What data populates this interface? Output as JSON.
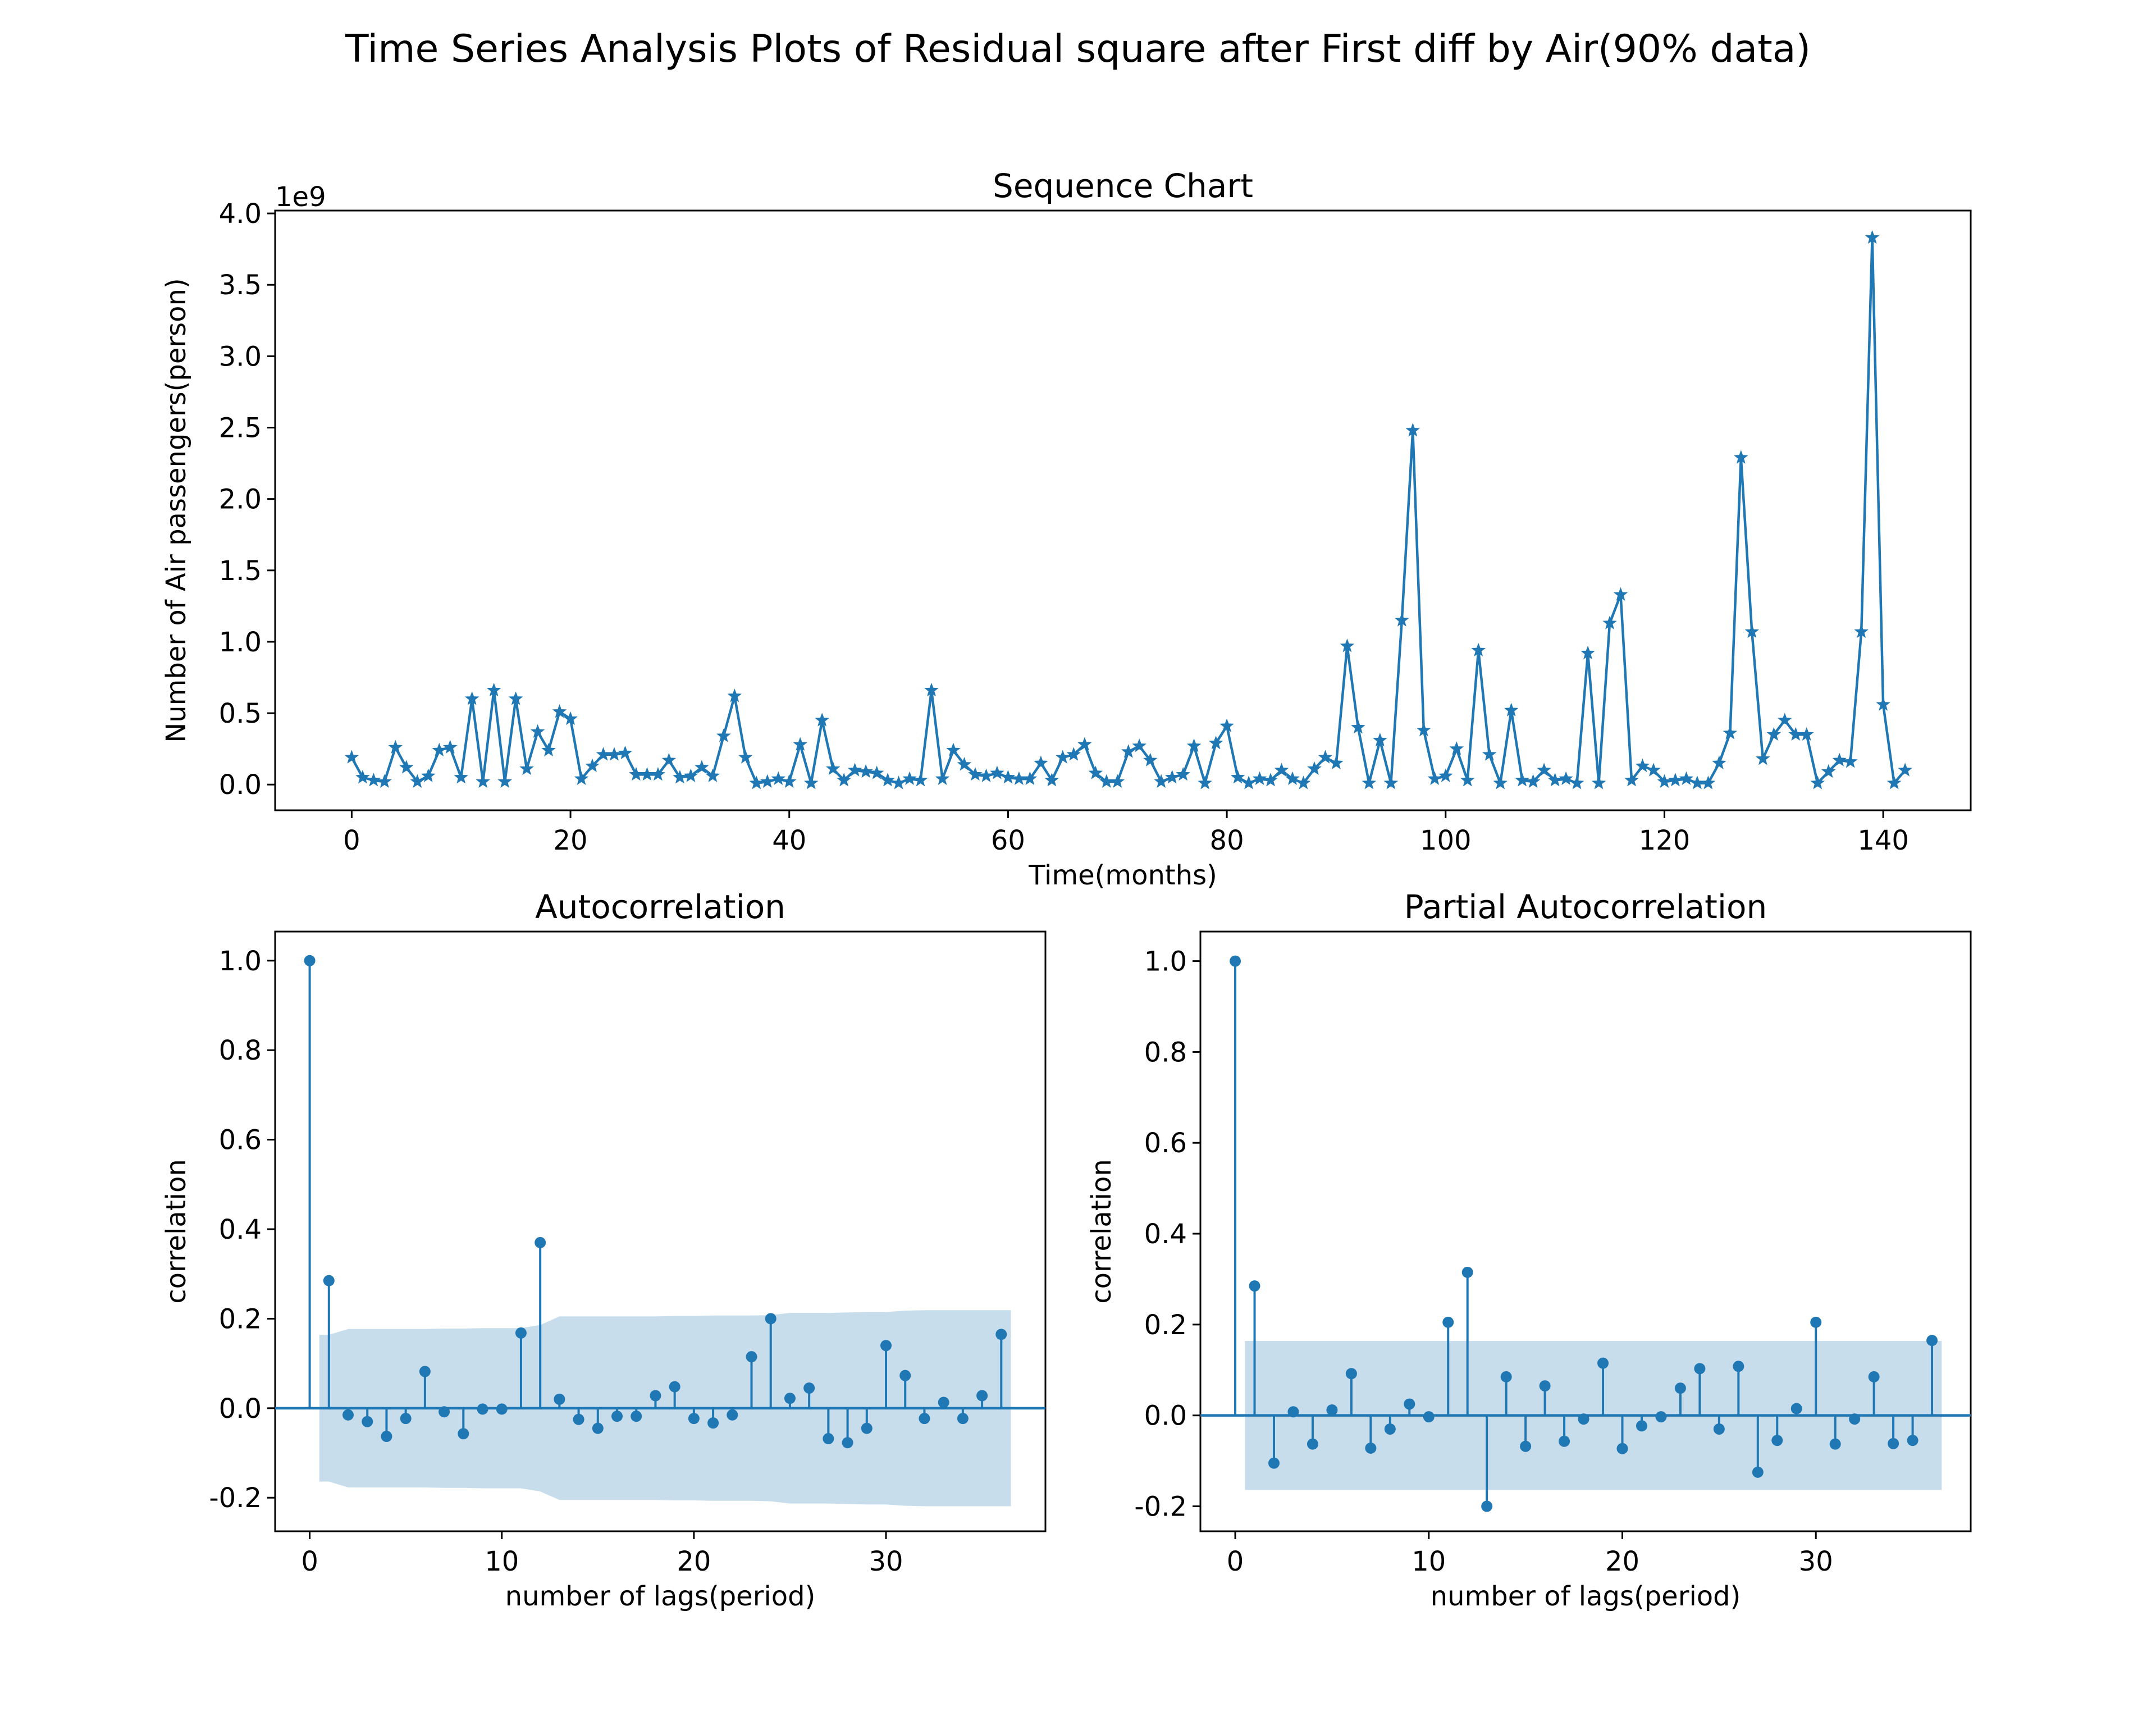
{
  "figure": {
    "title": "Time Series Analysis Plots of Residual square after First diff by Air(90% data)"
  },
  "colors": {
    "series": "#1f77b4",
    "band": "#1f77b4",
    "band_opacity": 0.25,
    "axis": "#000000"
  },
  "chart_data": [
    {
      "id": "sequence",
      "type": "line",
      "title": "Sequence Chart",
      "xlabel": "Time(months)",
      "ylabel": "Number of Air passengers(person)",
      "yoffset_label": "1e9",
      "marker": "star",
      "xlim": [
        -7,
        148
      ],
      "ylim": [
        -0.18,
        4.02
      ],
      "xticks": [
        0,
        20,
        40,
        60,
        80,
        100,
        120,
        140
      ],
      "yticks": [
        0.0,
        0.5,
        1.0,
        1.5,
        2.0,
        2.5,
        3.0,
        3.5,
        4.0
      ],
      "ytick_labels": [
        "0.0",
        "0.5",
        "1.0",
        "1.5",
        "2.0",
        "2.5",
        "3.0",
        "3.5",
        "4.0"
      ],
      "y_scale_note": "values in units of 1e9",
      "values": [
        0.19,
        0.05,
        0.03,
        0.02,
        0.26,
        0.12,
        0.02,
        0.06,
        0.24,
        0.26,
        0.05,
        0.6,
        0.02,
        0.66,
        0.02,
        0.6,
        0.11,
        0.37,
        0.24,
        0.51,
        0.46,
        0.04,
        0.13,
        0.21,
        0.21,
        0.22,
        0.07,
        0.07,
        0.07,
        0.17,
        0.05,
        0.06,
        0.12,
        0.06,
        0.34,
        0.62,
        0.19,
        0.01,
        0.02,
        0.04,
        0.02,
        0.28,
        0.01,
        0.45,
        0.11,
        0.03,
        0.1,
        0.09,
        0.08,
        0.03,
        0.01,
        0.04,
        0.03,
        0.66,
        0.04,
        0.24,
        0.14,
        0.07,
        0.06,
        0.08,
        0.05,
        0.04,
        0.04,
        0.15,
        0.03,
        0.19,
        0.21,
        0.28,
        0.08,
        0.02,
        0.02,
        0.23,
        0.27,
        0.17,
        0.02,
        0.05,
        0.07,
        0.27,
        0.01,
        0.29,
        0.41,
        0.05,
        0.01,
        0.04,
        0.03,
        0.1,
        0.04,
        0.01,
        0.11,
        0.19,
        0.15,
        0.97,
        0.4,
        0.01,
        0.31,
        0.01,
        1.15,
        2.48,
        0.38,
        0.04,
        0.06,
        0.25,
        0.03,
        0.94,
        0.21,
        0.01,
        0.52,
        0.03,
        0.02,
        0.1,
        0.03,
        0.04,
        0.01,
        0.92,
        0.01,
        1.13,
        1.33,
        0.03,
        0.13,
        0.1,
        0.02,
        0.03,
        0.04,
        0.01,
        0.01,
        0.15,
        0.36,
        2.29,
        1.07,
        0.18,
        0.35,
        0.45,
        0.35,
        0.35,
        0.01,
        0.09,
        0.17,
        0.16,
        1.07,
        3.83,
        0.56,
        0.01,
        0.1
      ]
    },
    {
      "id": "acf",
      "type": "stem",
      "title": "Autocorrelation",
      "xlabel": "number of lags(period)",
      "ylabel": "correlation",
      "xlim": [
        -1.8,
        38.3
      ],
      "ylim": [
        -0.275,
        1.065
      ],
      "xticks": [
        0,
        10,
        20,
        30
      ],
      "yticks": [
        -0.2,
        0.0,
        0.2,
        0.4,
        0.6,
        0.8,
        1.0
      ],
      "ytick_labels": [
        "-0.2",
        "0.0",
        "0.2",
        "0.4",
        "0.6",
        "0.8",
        "1.0"
      ],
      "lags": [
        0,
        1,
        2,
        3,
        4,
        5,
        6,
        7,
        8,
        9,
        10,
        11,
        12,
        13,
        14,
        15,
        16,
        17,
        18,
        19,
        20,
        21,
        22,
        23,
        24,
        25,
        26,
        27,
        28,
        29,
        30,
        31,
        32,
        33,
        34,
        35,
        36
      ],
      "values": [
        1.0,
        0.285,
        -0.015,
        -0.03,
        -0.063,
        -0.023,
        0.082,
        -0.008,
        -0.057,
        -0.002,
        -0.002,
        0.168,
        0.37,
        0.02,
        -0.025,
        -0.045,
        -0.018,
        -0.018,
        0.028,
        0.048,
        -0.023,
        -0.033,
        -0.015,
        0.115,
        0.2,
        0.022,
        0.045,
        -0.068,
        -0.077,
        -0.045,
        0.14,
        0.073,
        -0.023,
        0.013,
        -0.023,
        0.028,
        0.165
      ],
      "confint_lags": [
        0.5,
        1,
        2,
        3,
        4,
        5,
        6,
        7,
        8,
        9,
        10,
        11,
        12,
        13,
        14,
        15,
        16,
        17,
        18,
        19,
        20,
        21,
        22,
        23,
        24,
        25,
        26,
        27,
        28,
        29,
        30,
        31,
        32,
        33,
        34,
        35,
        36,
        36.5
      ],
      "confint": [
        0.164,
        0.164,
        0.177,
        0.177,
        0.177,
        0.177,
        0.177,
        0.178,
        0.178,
        0.179,
        0.179,
        0.179,
        0.186,
        0.205,
        0.205,
        0.205,
        0.205,
        0.205,
        0.205,
        0.206,
        0.206,
        0.207,
        0.207,
        0.207,
        0.208,
        0.213,
        0.213,
        0.213,
        0.214,
        0.215,
        0.215,
        0.218,
        0.219,
        0.219,
        0.219,
        0.219,
        0.219,
        0.219
      ]
    },
    {
      "id": "pacf",
      "type": "stem",
      "title": "Partial Autocorrelation",
      "xlabel": "number of lags(period)",
      "ylabel": "correlation",
      "xlim": [
        -1.8,
        38.0
      ],
      "ylim": [
        -0.255,
        1.065
      ],
      "xticks": [
        0,
        10,
        20,
        30
      ],
      "yticks": [
        -0.2,
        0.0,
        0.2,
        0.4,
        0.6,
        0.8,
        1.0
      ],
      "ytick_labels": [
        "-0.2",
        "0.0",
        "0.2",
        "0.4",
        "0.6",
        "0.8",
        "1.0"
      ],
      "lags": [
        0,
        1,
        2,
        3,
        4,
        5,
        6,
        7,
        8,
        9,
        10,
        11,
        12,
        13,
        14,
        15,
        16,
        17,
        18,
        19,
        20,
        21,
        22,
        23,
        24,
        25,
        26,
        27,
        28,
        29,
        30,
        31,
        32,
        33,
        34,
        35,
        36
      ],
      "values": [
        1.0,
        0.285,
        -0.105,
        0.008,
        -0.063,
        0.012,
        0.092,
        -0.072,
        -0.03,
        0.025,
        -0.003,
        0.205,
        0.315,
        -0.2,
        0.085,
        -0.068,
        0.065,
        -0.057,
        -0.008,
        0.115,
        -0.073,
        -0.023,
        -0.003,
        0.06,
        0.103,
        -0.03,
        0.108,
        -0.125,
        -0.055,
        0.015,
        0.205,
        -0.063,
        -0.008,
        0.085,
        -0.062,
        -0.055,
        0.165
      ],
      "confint_lags": [
        0.5,
        36.5
      ],
      "confint": [
        0.164,
        0.164
      ]
    }
  ]
}
